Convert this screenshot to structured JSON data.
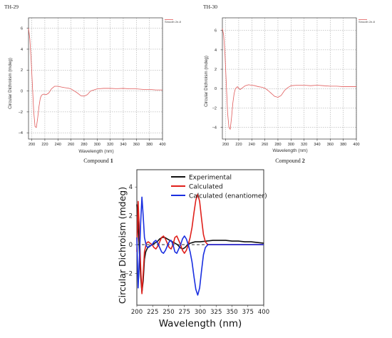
{
  "chart_data": [
    {
      "type": "line",
      "sample_label": "TH-29",
      "legend_label": "Smooth 2e-8",
      "caption_prefix": "Compound",
      "caption_number": "1",
      "xlabel": "Wavelength (nm)",
      "ylabel": "Circular Dichroism (mdeg)",
      "xlim": [
        195,
        400
      ],
      "ylim": [
        -4.6,
        7.0
      ],
      "xticks": [
        200,
        220,
        240,
        260,
        280,
        300,
        320,
        340,
        360,
        380,
        400
      ],
      "yticks": [
        6,
        4,
        2,
        0,
        -2,
        -4
      ],
      "grid": true,
      "series": [
        {
          "color": "#e05a5a",
          "x": [
            195,
            197,
            199,
            201,
            203,
            205,
            207,
            209,
            211,
            213,
            215,
            218,
            222,
            226,
            230,
            235,
            240,
            245,
            250,
            255,
            260,
            265,
            270,
            275,
            280,
            285,
            290,
            295,
            300,
            310,
            320,
            330,
            340,
            350,
            360,
            370,
            380,
            390,
            400
          ],
          "y": [
            6.0,
            5.0,
            3.0,
            0.5,
            -2.0,
            -3.4,
            -3.5,
            -2.6,
            -1.5,
            -0.7,
            -0.4,
            -0.3,
            -0.35,
            -0.2,
            0.2,
            0.45,
            0.45,
            0.38,
            0.32,
            0.28,
            0.2,
            0.0,
            -0.2,
            -0.45,
            -0.5,
            -0.35,
            0.0,
            0.1,
            0.2,
            0.25,
            0.25,
            0.22,
            0.25,
            0.2,
            0.2,
            0.15,
            0.15,
            0.1,
            0.1
          ]
        }
      ]
    },
    {
      "type": "line",
      "sample_label": "TH-30",
      "legend_label": "Smooth 2e-8",
      "caption_prefix": "Compound",
      "caption_number": "2",
      "xlabel": "Wavelength (nm)",
      "ylabel": "Circular Dichroism (mdeg)",
      "xlim": [
        195,
        400
      ],
      "ylim": [
        -5.2,
        7.3
      ],
      "xticks": [
        200,
        220,
        240,
        260,
        280,
        300,
        320,
        340,
        360,
        380,
        400
      ],
      "yticks": [
        6,
        4,
        2,
        0,
        -2,
        -4
      ],
      "grid": true,
      "series": [
        {
          "color": "#e05a5a",
          "x": [
            195,
            197,
            199,
            201,
            203,
            205,
            207,
            209,
            211,
            213,
            215,
            218,
            222,
            226,
            230,
            235,
            240,
            245,
            250,
            255,
            260,
            265,
            270,
            275,
            280,
            285,
            290,
            295,
            300,
            310,
            320,
            330,
            340,
            350,
            360,
            370,
            380,
            390,
            400
          ],
          "y": [
            6.2,
            5.5,
            3.5,
            0.5,
            -2.5,
            -4.0,
            -4.2,
            -3.0,
            -1.5,
            -0.5,
            0.0,
            0.2,
            -0.1,
            0.1,
            0.3,
            0.4,
            0.35,
            0.3,
            0.2,
            0.15,
            0.05,
            -0.2,
            -0.5,
            -0.8,
            -0.9,
            -0.7,
            -0.2,
            0.1,
            0.3,
            0.35,
            0.35,
            0.3,
            0.35,
            0.3,
            0.25,
            0.25,
            0.2,
            0.2,
            0.2
          ]
        }
      ]
    },
    {
      "type": "line",
      "xlabel": "Wavelength (nm)",
      "ylabel": "Circular Dichroism (mdeg)",
      "xlim": [
        200,
        400
      ],
      "ylim": [
        -4.2,
        5.2
      ],
      "xticks": [
        200,
        225,
        250,
        275,
        300,
        325,
        350,
        375,
        400
      ],
      "yticks": [
        4,
        2,
        0,
        -2
      ],
      "grid": false,
      "legend_position": "top-right",
      "series": [
        {
          "name": "Experimental",
          "color": "#111111",
          "x": [
            200,
            202,
            204,
            206,
            208,
            210,
            212,
            214,
            217,
            220,
            224,
            228,
            232,
            236,
            240,
            244,
            248,
            252,
            256,
            260,
            264,
            268,
            272,
            276,
            280,
            284,
            288,
            292,
            296,
            300,
            310,
            320,
            330,
            340,
            350,
            360,
            370,
            380,
            390,
            400
          ],
          "y": [
            2.8,
            1.5,
            -0.5,
            -2.2,
            -3.3,
            -2.5,
            -1.0,
            -0.5,
            -0.2,
            -0.1,
            0.0,
            0.1,
            0.2,
            0.4,
            0.5,
            0.5,
            0.4,
            0.3,
            0.2,
            0.1,
            0.0,
            -0.2,
            -0.3,
            -0.2,
            0.0,
            0.1,
            0.15,
            0.2,
            0.2,
            0.2,
            0.25,
            0.3,
            0.3,
            0.3,
            0.25,
            0.25,
            0.2,
            0.2,
            0.15,
            0.1
          ]
        },
        {
          "name": "Calculated",
          "color": "#e0201b",
          "x": [
            200,
            202,
            204,
            206,
            208,
            210,
            212,
            215,
            218,
            221,
            224,
            227,
            230,
            233,
            236,
            239,
            242,
            245,
            248,
            251,
            254,
            257,
            260,
            263,
            266,
            269,
            272,
            275,
            278,
            281,
            284,
            287,
            290,
            293,
            296,
            299,
            302,
            305,
            308,
            312,
            320,
            340,
            360,
            380,
            400
          ],
          "y": [
            -0.5,
            3.0,
            1.0,
            -1.5,
            -3.4,
            -2.0,
            -0.5,
            0.1,
            0.2,
            0.1,
            0.0,
            -0.2,
            -0.3,
            -0.1,
            0.2,
            0.5,
            0.6,
            0.4,
            0.1,
            -0.2,
            -0.3,
            0.0,
            0.5,
            0.6,
            0.3,
            0.0,
            -0.4,
            -0.6,
            -0.4,
            0.0,
            0.5,
            1.2,
            2.2,
            3.1,
            3.5,
            3.0,
            1.8,
            0.7,
            0.2,
            0.0,
            0.0,
            0.0,
            0.0,
            0.0,
            0.0
          ]
        },
        {
          "name": "Calculated (enantiomer)",
          "color": "#1a2fe0",
          "x": [
            200,
            202,
            204,
            206,
            208,
            210,
            212,
            215,
            218,
            221,
            224,
            227,
            230,
            233,
            236,
            239,
            242,
            245,
            248,
            251,
            254,
            257,
            260,
            263,
            266,
            269,
            272,
            275,
            278,
            281,
            284,
            287,
            290,
            293,
            296,
            299,
            302,
            305,
            308,
            312,
            320,
            340,
            360,
            380,
            400
          ],
          "y": [
            0.5,
            -3.0,
            -1.0,
            1.5,
            3.3,
            2.0,
            0.5,
            -0.1,
            -0.2,
            -0.1,
            0.0,
            0.2,
            0.3,
            0.1,
            -0.2,
            -0.5,
            -0.6,
            -0.4,
            -0.1,
            0.2,
            0.3,
            0.0,
            -0.5,
            -0.6,
            -0.3,
            0.0,
            0.4,
            0.6,
            0.4,
            0.0,
            -0.5,
            -1.2,
            -2.2,
            -3.1,
            -3.5,
            -3.0,
            -1.8,
            -0.7,
            -0.2,
            0.0,
            0.0,
            0.0,
            0.0,
            0.0,
            0.0
          ]
        }
      ]
    }
  ]
}
